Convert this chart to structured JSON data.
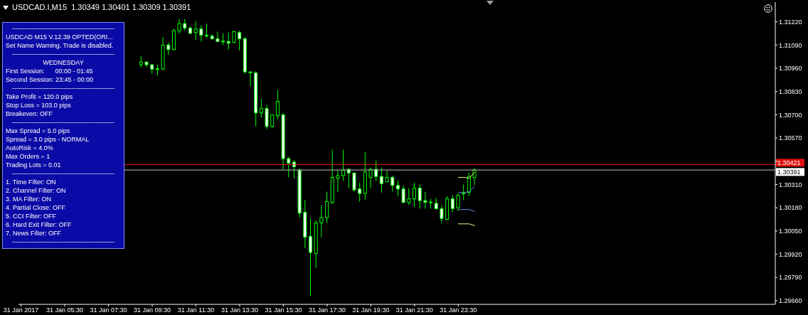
{
  "chart_data": {
    "type": "candlestick",
    "title": "USDCAD.I,M15  1.30349 1.30401 1.30309 1.30391",
    "annotations": [
      "------------------------------------------------",
      "USDCAD M15 V.12.39 OPTED(ORI...",
      "Set Name Warning. Trade is disabled.",
      "------------------------------------------------",
      "WEDNESDAY",
      "First Session:      00:00 - 01:45",
      "Second Session: 23:45 - 00:00",
      "------------------------------------------------",
      "Take Profit = 120.0 pips",
      "Stop Loss = 103.0 pips",
      "Breakeven: OFF",
      "------------------------------------------------",
      "Max Spread = 5.0 pips",
      "Spread = 3.0 pips - NORMAL",
      "AutoRisk = 4.0%",
      "Max Orders = 1",
      "Trading Lots = 0.01",
      "------------------------------------------------",
      "1. Time Filter: ON",
      "2. Channel Filter: ON",
      "3. MA Filter: ON",
      "4. Partial Close: OFF",
      "5. CCI Filter: OFF",
      "6. Hard Exit Filter: OFF",
      "7. News Filter: OFF",
      "------------------------------------------------"
    ],
    "x": [
      "2017-01-31T09:00",
      "2017-01-31T09:15",
      "2017-01-31T09:30",
      "2017-01-31T09:45",
      "2017-01-31T10:00",
      "2017-01-31T10:15",
      "2017-01-31T10:30",
      "2017-01-31T10:45",
      "2017-01-31T11:00",
      "2017-01-31T11:15",
      "2017-01-31T11:30",
      "2017-01-31T11:45",
      "2017-01-31T12:00",
      "2017-01-31T12:15",
      "2017-01-31T12:30",
      "2017-01-31T12:45",
      "2017-01-31T13:00",
      "2017-01-31T13:15",
      "2017-01-31T13:30",
      "2017-01-31T13:45",
      "2017-01-31T14:00",
      "2017-01-31T14:15",
      "2017-01-31T14:30",
      "2017-01-31T14:45",
      "2017-01-31T15:00",
      "2017-01-31T15:15",
      "2017-01-31T15:30",
      "2017-01-31T15:45",
      "2017-01-31T16:00",
      "2017-01-31T16:15",
      "2017-01-31T16:30",
      "2017-01-31T16:45",
      "2017-01-31T17:00",
      "2017-01-31T17:15",
      "2017-01-31T17:30",
      "2017-01-31T17:45",
      "2017-01-31T18:00",
      "2017-01-31T18:15",
      "2017-01-31T18:30",
      "2017-01-31T18:45",
      "2017-01-31T19:00",
      "2017-01-31T19:15",
      "2017-01-31T19:30",
      "2017-01-31T19:45",
      "2017-01-31T20:00",
      "2017-01-31T20:15",
      "2017-01-31T20:30",
      "2017-01-31T20:45",
      "2017-01-31T21:00",
      "2017-01-31T21:15",
      "2017-01-31T21:30",
      "2017-01-31T21:45",
      "2017-01-31T22:00",
      "2017-01-31T22:15",
      "2017-01-31T22:30",
      "2017-01-31T22:45",
      "2017-01-31T23:00",
      "2017-01-31T23:15",
      "2017-01-31T23:30",
      "2017-01-31T23:45",
      "2017-02-01T00:00",
      "2017-02-01T00:15"
    ],
    "ohlc": [
      [
        1.3098,
        1.3103,
        1.30965,
        1.30995
      ],
      [
        1.30995,
        1.31,
        1.30965,
        1.3098
      ],
      [
        1.3098,
        1.3098,
        1.3093,
        1.30955
      ],
      [
        1.30955,
        1.3098,
        1.3092,
        1.30955
      ],
      [
        1.30955,
        1.31135,
        1.3095,
        1.3109
      ],
      [
        1.3109,
        1.31105,
        1.31035,
        1.31065
      ],
      [
        1.31065,
        1.3118,
        1.3106,
        1.3117
      ],
      [
        1.3117,
        1.31235,
        1.31155,
        1.3121
      ],
      [
        1.3121,
        1.31235,
        1.3117,
        1.31185
      ],
      [
        1.31185,
        1.31195,
        1.31155,
        1.31155
      ],
      [
        1.3116,
        1.31225,
        1.3112,
        1.3118
      ],
      [
        1.3118,
        1.312,
        1.3111,
        1.31145
      ],
      [
        1.31145,
        1.3121,
        1.3113,
        1.3114
      ],
      [
        1.3114,
        1.3115,
        1.3112,
        1.31125
      ],
      [
        1.31125,
        1.31165,
        1.31105,
        1.3111
      ],
      [
        1.3111,
        1.31155,
        1.3109,
        1.3111
      ],
      [
        1.3111,
        1.3116,
        1.31065,
        1.311
      ],
      [
        1.31105,
        1.3117,
        1.311,
        1.31165
      ],
      [
        1.3116,
        1.3117,
        1.3106,
        1.31125
      ],
      [
        1.31125,
        1.31135,
        1.3093,
        1.3094
      ],
      [
        1.3094,
        1.3094,
        1.3086,
        1.30935
      ],
      [
        1.30935,
        1.30945,
        1.30635,
        1.3071
      ],
      [
        1.3071,
        1.3079,
        1.30685,
        1.30735
      ],
      [
        1.30735,
        1.30755,
        1.3062,
        1.30635
      ],
      [
        1.30635,
        1.307,
        1.30625,
        1.307
      ],
      [
        1.30695,
        1.3084,
        1.30675,
        1.30775
      ],
      [
        1.307,
        1.3071,
        1.30395,
        1.30455
      ],
      [
        1.30455,
        1.30465,
        1.3035,
        1.3043
      ],
      [
        1.30435,
        1.30445,
        1.30345,
        1.3041
      ],
      [
        1.3039,
        1.304,
        1.30125,
        1.3015
      ],
      [
        1.30155,
        1.30225,
        1.29955,
        1.30015
      ],
      [
        1.3002,
        1.3012,
        1.29685,
        1.2993
      ],
      [
        1.29925,
        1.3011,
        1.29845,
        1.30095
      ],
      [
        1.30095,
        1.30195,
        1.30015,
        1.30125
      ],
      [
        1.30125,
        1.3027,
        1.30095,
        1.30215
      ],
      [
        1.3021,
        1.30505,
        1.302,
        1.3035
      ],
      [
        1.30345,
        1.3039,
        1.3027,
        1.3036
      ],
      [
        1.3036,
        1.30505,
        1.3033,
        1.3039
      ],
      [
        1.30395,
        1.304,
        1.3029,
        1.30375
      ],
      [
        1.30375,
        1.30375,
        1.3027,
        1.3028
      ],
      [
        1.30285,
        1.3032,
        1.30215,
        1.3026
      ],
      [
        1.3026,
        1.3049,
        1.30225,
        1.3038
      ],
      [
        1.3035,
        1.30405,
        1.3029,
        1.30395
      ],
      [
        1.30395,
        1.30445,
        1.3033,
        1.30355
      ],
      [
        1.30355,
        1.30405,
        1.30265,
        1.30315
      ],
      [
        1.30325,
        1.30385,
        1.30325,
        1.3035
      ],
      [
        1.3035,
        1.3036,
        1.3027,
        1.30305
      ],
      [
        1.30305,
        1.3033,
        1.30245,
        1.30285
      ],
      [
        1.30285,
        1.30305,
        1.30205,
        1.3021
      ],
      [
        1.3021,
        1.3029,
        1.30195,
        1.3023
      ],
      [
        1.3023,
        1.3032,
        1.30185,
        1.3029
      ],
      [
        1.3029,
        1.3031,
        1.30175,
        1.3022
      ],
      [
        1.3022,
        1.3027,
        1.30175,
        1.3021
      ],
      [
        1.3021,
        1.3023,
        1.30175,
        1.3021
      ],
      [
        1.30205,
        1.30235,
        1.3017,
        1.30175
      ],
      [
        1.30175,
        1.30195,
        1.30095,
        1.3012
      ],
      [
        1.30115,
        1.30245,
        1.3011,
        1.3023
      ],
      [
        1.3023,
        1.3025,
        1.30155,
        1.30175
      ],
      [
        1.3018,
        1.3026,
        1.3016,
        1.3025
      ],
      [
        1.3026,
        1.3031,
        1.30225,
        1.3026
      ],
      [
        1.30265,
        1.30375,
        1.30245,
        1.30355
      ],
      [
        1.30349,
        1.30401,
        1.30309,
        1.30391
      ]
    ],
    "color": "#00ff00",
    "colors": [
      "#000000",
      "#ffffff",
      "#ffffff",
      "#000000",
      "#000000",
      "#ffffff",
      "#000000",
      "#000000",
      "#ffffff",
      "#ffffff",
      "#000000",
      "#ffffff",
      "#ffffff",
      "#ffffff",
      "#ffffff",
      "#000000",
      "#ffffff",
      "#000000",
      "#ffffff",
      "#ffffff",
      "#ffffff",
      "#ffffff",
      "#000000",
      "#ffffff",
      "#000000",
      "#000000",
      "#ffffff",
      "#ffffff",
      "#ffffff",
      "#ffffff",
      "#ffffff",
      "#ffffff",
      "#000000",
      "#000000",
      "#000000",
      "#000000",
      "#000000",
      "#000000",
      "#ffffff",
      "#ffffff",
      "#ffffff",
      "#000000",
      "#000000",
      "#ffffff",
      "#ffffff",
      "#000000",
      "#ffffff",
      "#ffffff",
      "#ffffff",
      "#000000",
      "#000000",
      "#ffffff",
      "#ffffff",
      "#000000",
      "#ffffff",
      "#ffffff",
      "#000000",
      "#ffffff",
      "#000000",
      "#000000",
      "#000000",
      "#000000"
    ],
    "series": [
      {
        "type": "line",
        "x": [
          "2017-01-31T23:30",
          "2017-01-31T23:45",
          "2017-02-01T00:00",
          "2017-02-01T00:15"
        ],
        "values": [
          1.3035,
          1.3035,
          1.30345,
          1.3038
        ],
        "color": "#f5f57a"
      },
      {
        "type": "line",
        "x": [
          "2017-01-31T23:30",
          "2017-01-31T23:45",
          "2017-02-01T00:00",
          "2017-02-01T00:15"
        ],
        "values": [
          1.30265,
          1.30265,
          1.3027,
          1.303
        ],
        "color": "#6688dd"
      },
      {
        "type": "line",
        "x": [
          "2017-01-31T23:30",
          "2017-01-31T23:45",
          "2017-02-01T00:00",
          "2017-02-01T00:15"
        ],
        "values": [
          1.3017,
          1.3017,
          1.3017,
          1.3016
        ],
        "color": "#6688dd"
      },
      {
        "type": "line",
        "x": [
          "2017-01-31T23:30",
          "2017-01-31T23:45",
          "2017-02-01T00:00",
          "2017-02-01T00:15"
        ],
        "values": [
          1.3009,
          1.3009,
          1.3009,
          1.3008
        ],
        "color": "#f5f57a"
      }
    ],
    "xlim": [
      "2017-01-31T03:23",
      "2017-02-01T14:00"
    ],
    "xticks": [
      {
        "value": "2017-01-31T03:30",
        "label": "31 Jan 2017"
      },
      {
        "value": "2017-01-31T05:30",
        "label": "31 Jan 05:30"
      },
      {
        "value": "2017-01-31T07:30",
        "label": "31 Jan 07:30"
      },
      {
        "value": "2017-01-31T09:30",
        "label": "31 Jan 09:30"
      },
      {
        "value": "2017-01-31T11:30",
        "label": "31 Jan 11:30"
      },
      {
        "value": "2017-01-31T13:30",
        "label": "31 Jan 13:30"
      },
      {
        "value": "2017-01-31T15:30",
        "label": "31 Jan 15:30"
      },
      {
        "value": "2017-01-31T17:30",
        "label": "31 Jan 17:30"
      },
      {
        "value": "2017-01-31T19:30",
        "label": "31 Jan 19:30"
      },
      {
        "value": "2017-01-31T21:30",
        "label": "31 Jan 21:30"
      },
      {
        "value": "2017-01-31T23:30",
        "label": "31 Jan 23:30"
      }
    ],
    "ylim": [
      1.2964,
      1.3133
    ],
    "yticks": [
      {
        "value": 1.2966,
        "label": "1.29660"
      },
      {
        "value": 1.2979,
        "label": "1.29790"
      },
      {
        "value": 1.2992,
        "label": "1.29920"
      },
      {
        "value": 1.3005,
        "label": "1.30050"
      },
      {
        "value": 1.3018,
        "label": "1.30180"
      },
      {
        "value": 1.3031,
        "label": "1.30310"
      },
      {
        "value": 1.3044,
        "label": null
      },
      {
        "value": 1.3057,
        "label": "1.30570"
      },
      {
        "value": 1.307,
        "label": "1.30700"
      },
      {
        "value": 1.3083,
        "label": "1.30830"
      },
      {
        "value": 1.3096,
        "label": "1.30960"
      },
      {
        "value": 1.3109,
        "label": "1.31090"
      },
      {
        "value": 1.3122,
        "label": "1.31220"
      }
    ],
    "ref_lines": [
      {
        "axis": "y",
        "value": 1.30421,
        "label": "1.30421",
        "color": "#e01010"
      },
      {
        "axis": "y",
        "value": 1.30391,
        "label": "1.30391",
        "color": "#c0c0c0"
      }
    ]
  }
}
